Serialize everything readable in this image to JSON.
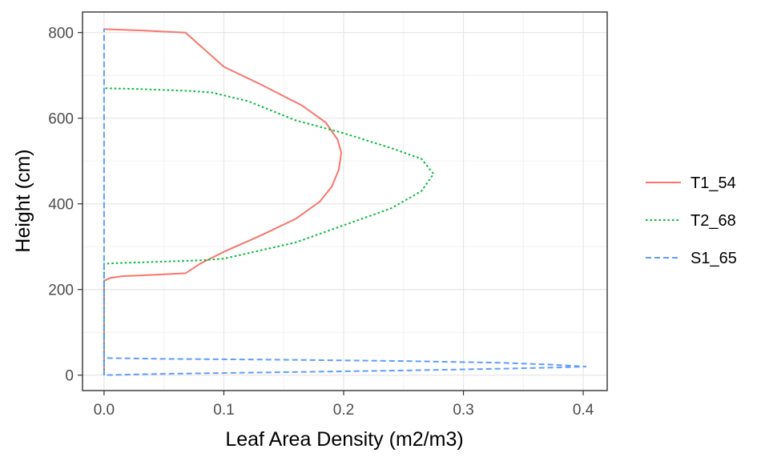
{
  "chart_data": {
    "type": "line",
    "title": "",
    "xlabel": "Leaf Area Density (m2/m3)",
    "ylabel": "Height (cm)",
    "xlim": [
      -0.018,
      0.42
    ],
    "ylim": [
      -36,
      848
    ],
    "x_ticks": [
      0.0,
      0.1,
      0.2,
      0.3,
      0.4
    ],
    "x_tick_labels": [
      "0.0",
      "0.1",
      "0.2",
      "0.3",
      "0.4"
    ],
    "y_ticks": [
      0,
      200,
      400,
      600,
      800
    ],
    "y_tick_labels": [
      "0",
      "200",
      "400",
      "600",
      "800"
    ],
    "grid": true,
    "legend_position": "right",
    "series": [
      {
        "name": "T1_54",
        "color": "#F8766D",
        "dash": "solid",
        "points": [
          [
            0.0,
            0
          ],
          [
            0.0,
            220
          ],
          [
            0.005,
            227
          ],
          [
            0.015,
            231
          ],
          [
            0.04,
            234
          ],
          [
            0.068,
            238
          ],
          [
            0.08,
            260
          ],
          [
            0.1,
            288
          ],
          [
            0.13,
            325
          ],
          [
            0.16,
            365
          ],
          [
            0.18,
            405
          ],
          [
            0.19,
            440
          ],
          [
            0.196,
            480
          ],
          [
            0.198,
            520
          ],
          [
            0.195,
            550
          ],
          [
            0.185,
            590
          ],
          [
            0.165,
            630
          ],
          [
            0.13,
            680
          ],
          [
            0.1,
            720
          ],
          [
            0.068,
            800
          ],
          [
            0.03,
            805
          ],
          [
            0.0,
            808
          ]
        ]
      },
      {
        "name": "T2_68",
        "color": "#00BA38",
        "dash": "dotted",
        "points": [
          [
            0.0,
            0
          ],
          [
            0.0,
            260
          ],
          [
            0.015,
            262
          ],
          [
            0.05,
            265
          ],
          [
            0.08,
            268
          ],
          [
            0.1,
            272
          ],
          [
            0.16,
            310
          ],
          [
            0.2,
            350
          ],
          [
            0.24,
            390
          ],
          [
            0.265,
            430
          ],
          [
            0.275,
            470
          ],
          [
            0.265,
            505
          ],
          [
            0.24,
            530
          ],
          [
            0.2,
            565
          ],
          [
            0.16,
            595
          ],
          [
            0.12,
            640
          ],
          [
            0.09,
            660
          ],
          [
            0.07,
            664
          ],
          [
            0.03,
            668
          ],
          [
            0.0,
            670
          ]
        ]
      },
      {
        "name": "S1_65",
        "color": "#619CFF",
        "dash": "dashed",
        "points": [
          [
            0.0,
            0
          ],
          [
            0.0,
            808
          ],
          [
            0.0,
            40
          ],
          [
            0.05,
            38
          ],
          [
            0.15,
            36
          ],
          [
            0.25,
            33
          ],
          [
            0.33,
            29
          ],
          [
            0.37,
            25
          ],
          [
            0.39,
            22
          ],
          [
            0.402,
            20
          ],
          [
            0.38,
            18
          ],
          [
            0.33,
            15
          ],
          [
            0.25,
            11
          ],
          [
            0.15,
            7
          ],
          [
            0.05,
            3
          ],
          [
            0.0,
            0
          ]
        ]
      }
    ]
  }
}
